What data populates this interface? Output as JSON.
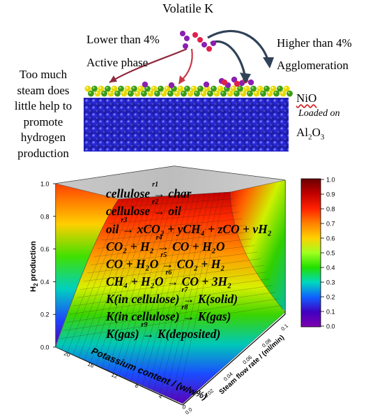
{
  "top": {
    "volatile_k": "Volatile K",
    "lower": "Lower than 4%",
    "active": "Active phase",
    "higher": "Higher than 4%",
    "agglomeration": "Agglomeration",
    "too_much_steam": [
      "Too much",
      "steam does",
      "little help to",
      "promote",
      "hydrogen",
      "production"
    ],
    "nio": "NiO",
    "loaded_on": "Loaded on",
    "al2o3": "Al",
    "al2o3_sub": "2",
    "al2o3_o": "O",
    "al2o3_sub2": "3"
  },
  "plot": {
    "ylabel": "H",
    "ylabel_sub": "2",
    "ylabel_rest": " production",
    "xlabel": "Potassium content / (w/w%)",
    "zlabel": "Steam flow rate / (ml/min)",
    "yticks": [
      "0.0",
      "0.2",
      "0.4",
      "0.6",
      "0.8",
      "1.0"
    ],
    "xticks": [
      "20",
      "16",
      "12",
      "8",
      "4",
      "0"
    ],
    "zticks": [
      "0.1",
      "0.08",
      "0.06",
      "0.04",
      "0.02",
      "0.0"
    ]
  },
  "colorbar": {
    "ticks": [
      "1.0",
      "0.9",
      "0.8",
      "0.7",
      "0.6",
      "0.5",
      "0.4",
      "0.3",
      "0.2",
      "0.1",
      "0.0"
    ],
    "colors": [
      "#6a0000",
      "#c10000",
      "#ff2000",
      "#ff8000",
      "#ffd000",
      "#a0ff20",
      "#20e000",
      "#00d8c0",
      "#1060ff",
      "#4000c0",
      "#8000b0"
    ]
  },
  "reactions": [
    {
      "text": "cellulose → char",
      "label": "r1"
    },
    {
      "text": "cellulose → oil",
      "label": "r2"
    },
    {
      "text": "oil → xCO₂ + yCH₄ + zCO + vH₂",
      "label": "r3"
    },
    {
      "text": "CO₂ + H₂ → CO + H₂O",
      "label": "r4"
    },
    {
      "text": "CO + H₂O → CO₂ + H₂",
      "label": "r5"
    },
    {
      "text": "CH₄ + H₂O → CO + 3H₂",
      "label": "r6"
    },
    {
      "text": "K(in cellulose) → K(solid)",
      "label": "r7"
    },
    {
      "text": "K(in cellulose) → K(gas)",
      "label": "r8"
    },
    {
      "text": "K(gas) → K(deposited)",
      "label": "r9"
    }
  ]
}
